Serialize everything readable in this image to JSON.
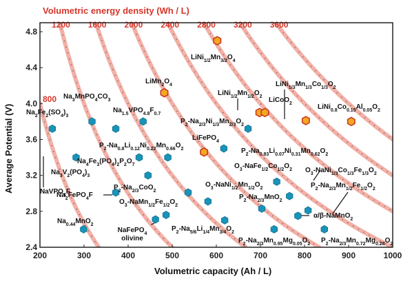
{
  "chart_data": {
    "type": "scatter",
    "title": "Volumetric energy density (Wh / L)",
    "xlabel": "Volumetric capacity (Ah / L)",
    "ylabel": "Average Potential (V)",
    "xlim": [
      200,
      1000
    ],
    "ylim": [
      2.4,
      4.9
    ],
    "x_ticks": [
      200,
      300,
      400,
      500,
      600,
      700,
      800,
      900,
      1000
    ],
    "y_ticks": [
      2.4,
      2.8,
      3.2,
      3.6,
      4.0,
      4.4,
      4.8
    ],
    "isolines_wh_per_l": [
      800,
      1200,
      1600,
      2000,
      2400,
      2800,
      3200,
      3600
    ],
    "isoline_labels": [
      "800",
      "1200",
      "1600",
      "2000",
      "2400",
      "2800",
      "3200",
      "3600"
    ],
    "colors": {
      "sodium": "#1a93b8",
      "lithium": "#f5a623",
      "isoline": "#f3b0a6",
      "isoline_text": "#d6362b"
    },
    "points": [
      {
        "group": "sodium",
        "x": 228,
        "y": 3.72,
        "label": "NaVPO4F"
      },
      {
        "group": "sodium",
        "x": 318,
        "y": 3.8,
        "label": "Na2Fe2(SO4)3"
      },
      {
        "group": "sodium",
        "x": 372,
        "y": 3.72,
        "label": "Na3MnPO4CO3"
      },
      {
        "group": "sodium",
        "x": 434,
        "y": 3.8,
        "label": "Na1.5VPO4.8F0.7"
      },
      {
        "group": "sodium",
        "x": 282,
        "y": 3.4,
        "label": "Na3V2(PO4)3"
      },
      {
        "group": "sodium",
        "x": 425,
        "y": 3.4,
        "label": ""
      },
      {
        "group": "sodium",
        "x": 490,
        "y": 3.4,
        "label": "P2-Na0.8Li0.12Ni0.22Mn0.66O2"
      },
      {
        "group": "sodium",
        "x": 445,
        "y": 3.2,
        "label": "Na4Fe3(PO4)2P2O7"
      },
      {
        "group": "sodium",
        "x": 372,
        "y": 3.01,
        "label": "Na2FePO4F"
      },
      {
        "group": "sodium",
        "x": 536,
        "y": 3.01,
        "label": "P2-Na2/3CoO2"
      },
      {
        "group": "sodium",
        "x": 581,
        "y": 2.91,
        "label": "O3-NaNi1/2Mn1/2O2"
      },
      {
        "group": "sodium",
        "x": 486,
        "y": 2.76,
        "label": "O3-NaMn1/2Fe1/2O2"
      },
      {
        "group": "sodium",
        "x": 462,
        "y": 2.71,
        "label": "NaFePO4 olivine"
      },
      {
        "group": "sodium",
        "x": 299,
        "y": 2.6,
        "label": "Na0.44MnO2"
      },
      {
        "group": "sodium",
        "x": 619,
        "y": 2.7,
        "label": "P2-Na5/6Li1/4Mn3/4O2"
      },
      {
        "group": "sodium",
        "x": 617,
        "y": 3.5,
        "label": "P2-Na0.83Li0.07Ni0.31Mn0.62O2"
      },
      {
        "group": "sodium",
        "x": 672,
        "y": 3.72,
        "label": "P2-Na2/3Ni1/3Mn2/3O2"
      },
      {
        "group": "sodium",
        "x": 737,
        "y": 3.13,
        "label": "O3-NaFe1/2Co1/2O2"
      },
      {
        "group": "sodium",
        "x": 703,
        "y": 2.83,
        "label": "P2-Na2/3MnO2"
      },
      {
        "group": "sodium",
        "x": 766,
        "y": 2.97,
        "label": "O3-NaNi1/3Co1/3Fe1/3O2"
      },
      {
        "group": "sodium",
        "x": 808,
        "y": 2.81,
        "label": "P2-Na2/3Mn1/2Fe1/2O2"
      },
      {
        "group": "sodium",
        "x": 785,
        "y": 2.75,
        "label": "α/β-NaMnO2"
      },
      {
        "group": "sodium",
        "x": 731,
        "y": 2.6,
        "label": "P2-Na2/3Mn0.95Mg0.05O2"
      },
      {
        "group": "sodium",
        "x": 845,
        "y": 2.6,
        "label": "P2-Na2/3Mn0.72Mg0.28O2"
      },
      {
        "group": "lithium",
        "x": 602,
        "y": 4.7,
        "label": "LiNi1/2Mn3/2O4"
      },
      {
        "group": "lithium",
        "x": 482,
        "y": 4.12,
        "label": "LiMn2O4"
      },
      {
        "group": "lithium",
        "x": 572,
        "y": 3.46,
        "label": "LiFePO4"
      },
      {
        "group": "lithium",
        "x": 698,
        "y": 3.9,
        "label": "LiNi1/2Mn1/2O2"
      },
      {
        "group": "lithium",
        "x": 710,
        "y": 3.9,
        "label": "LiCoO2"
      },
      {
        "group": "lithium",
        "x": 803,
        "y": 3.81,
        "label": "LiNi1/3Mn1/3Co1/3O2"
      },
      {
        "group": "lithium",
        "x": 906,
        "y": 3.8,
        "label": "LiNi0.8Co0.15Al0.05O2"
      }
    ]
  }
}
